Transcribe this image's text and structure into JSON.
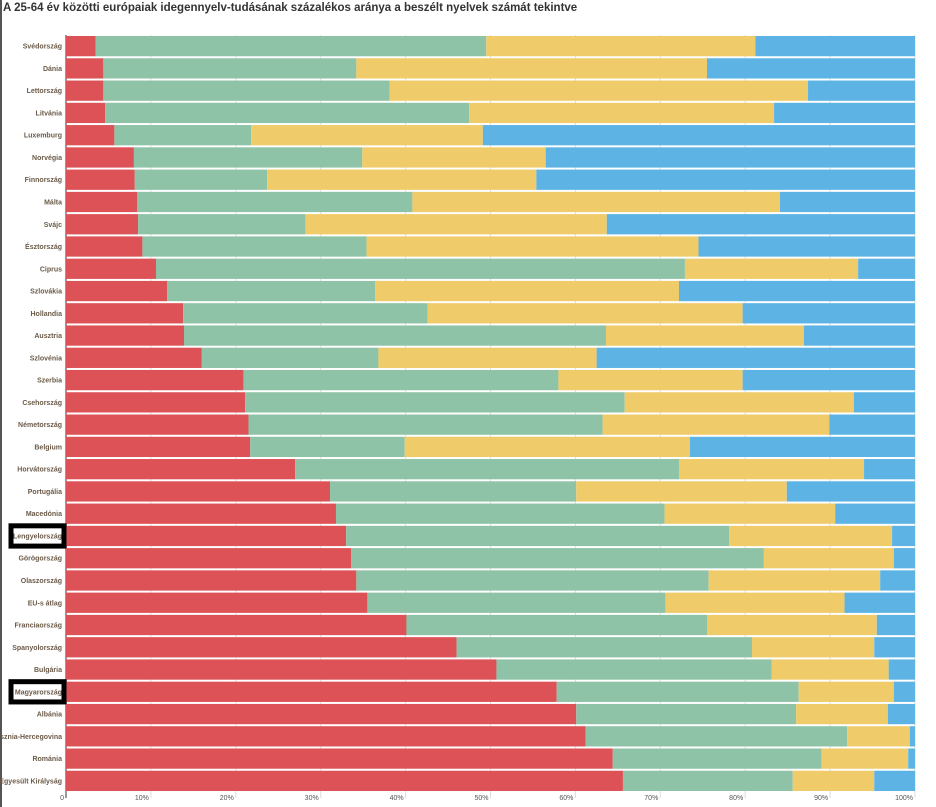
{
  "chart_data": {
    "type": "bar",
    "orientation": "horizontal",
    "stacked": "percent",
    "title": "A 25-64 év közötti európaiak idegennyelv-tudásának százalékos aránya a beszélt nyelvek számát tekintve",
    "xlabel": "",
    "ylabel": "",
    "xlim": [
      0,
      100
    ],
    "x_ticks": [
      "0",
      "10%",
      "20%",
      "30%",
      "40%",
      "50%",
      "60%",
      "70%",
      "80%",
      "90%",
      "100%"
    ],
    "grid": true,
    "colors": [
      "#dd5257",
      "#8ec3a7",
      "#f0cb69",
      "#5db4e4"
    ],
    "highlighted": [
      "Lengyelország",
      "Magyarország"
    ],
    "categories": [
      "Svédország",
      "Dánia",
      "Lettország",
      "Litvánia",
      "Luxemburg",
      "Norvégia",
      "Finnország",
      "Málta",
      "Svájc",
      "Észtország",
      "Ciprus",
      "Szlovákia",
      "Hollandia",
      "Ausztria",
      "Szlovénia",
      "Szerbia",
      "Csehország",
      "Németország",
      "Belgium",
      "Horvátország",
      "Portugália",
      "Macedónia",
      "Lengyelország",
      "Görögország",
      "Olaszország",
      "EU-s átlag",
      "Franciaország",
      "Spanyolország",
      "Bulgária",
      "Magyarország",
      "Albánia",
      "Bosznia-Hercegovina",
      "Románia",
      "Egyesült Királyság"
    ],
    "series": [
      {
        "values": [
          3.5,
          4.4,
          4.4,
          4.6,
          5.7,
          8.0,
          8.1,
          8.4,
          8.5,
          9.0,
          10.6,
          11.9,
          13.8,
          13.9,
          16.0,
          20.9,
          21.1,
          21.5,
          21.7,
          27.0,
          31.1,
          31.8,
          33.0,
          33.6,
          34.2,
          35.5,
          40.1,
          46.0,
          50.7,
          57.8,
          60.1,
          61.2,
          64.4,
          65.6
        ]
      },
      {
        "values": [
          46.0,
          29.8,
          33.7,
          42.9,
          16.1,
          26.9,
          15.6,
          32.4,
          19.7,
          26.4,
          62.3,
          24.5,
          28.8,
          49.7,
          20.8,
          37.1,
          44.7,
          41.7,
          18.2,
          45.2,
          29.0,
          38.7,
          45.1,
          48.6,
          41.5,
          35.1,
          35.4,
          34.8,
          32.4,
          28.5,
          25.9,
          30.8,
          24.6,
          20.0
        ]
      },
      {
        "values": [
          31.7,
          41.3,
          49.3,
          35.9,
          27.3,
          21.6,
          31.7,
          43.3,
          35.5,
          39.1,
          20.4,
          35.8,
          37.1,
          23.3,
          25.7,
          21.7,
          27.0,
          26.7,
          33.6,
          21.8,
          24.8,
          20.1,
          19.2,
          15.3,
          20.2,
          21.1,
          20.0,
          14.4,
          13.8,
          11.2,
          10.8,
          7.4,
          10.2,
          9.6
        ]
      },
      {
        "values": [
          18.8,
          24.5,
          12.6,
          16.6,
          50.9,
          43.5,
          44.6,
          15.9,
          36.3,
          25.5,
          6.7,
          27.8,
          20.3,
          13.1,
          37.5,
          20.3,
          7.2,
          10.1,
          26.5,
          6.0,
          15.1,
          9.4,
          2.7,
          2.5,
          4.1,
          8.3,
          4.5,
          4.8,
          3.1,
          2.5,
          3.2,
          0.6,
          0.8,
          4.8
        ]
      }
    ]
  }
}
